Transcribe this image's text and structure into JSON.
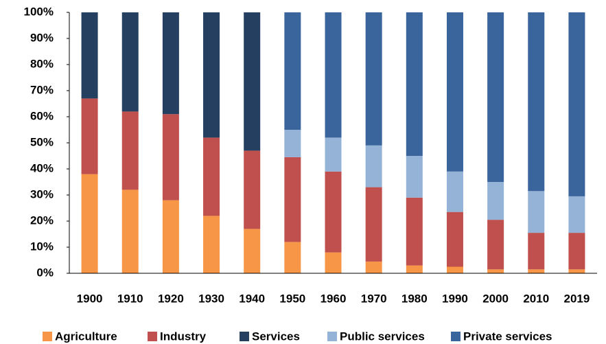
{
  "chart_data": {
    "type": "stacked-bar",
    "categories": [
      "1900",
      "1910",
      "1920",
      "1930",
      "1940",
      "1950",
      "1960",
      "1970",
      "1980",
      "1990",
      "2000",
      "2010",
      "2019"
    ],
    "series": [
      {
        "name": "Agriculture",
        "color": "#f79646",
        "values": [
          38,
          32,
          28,
          22,
          17,
          12,
          8,
          4.5,
          3,
          2.5,
          1.5,
          1.5,
          1.5
        ]
      },
      {
        "name": "Industry",
        "color": "#c0504d",
        "values": [
          29,
          30,
          33,
          30,
          30,
          32.5,
          31,
          28.5,
          26,
          21,
          19,
          14,
          14
        ]
      },
      {
        "name": "Services",
        "color": "#243f60",
        "values": [
          33,
          38,
          39,
          48,
          53,
          null,
          null,
          null,
          null,
          null,
          null,
          null,
          null
        ]
      },
      {
        "name": "Public services",
        "color": "#95b3d7",
        "values": [
          null,
          null,
          null,
          null,
          null,
          10.5,
          13,
          16,
          16,
          15.5,
          14.5,
          16,
          14
        ]
      },
      {
        "name": "Private services",
        "color": "#3a659c",
        "values": [
          null,
          null,
          null,
          null,
          null,
          45,
          48,
          51,
          55,
          61,
          65,
          68.5,
          70.5
        ]
      }
    ],
    "ylim": [
      0,
      100
    ],
    "yticks": [
      {
        "value": 0,
        "label": "0%"
      },
      {
        "value": 10,
        "label": "10%"
      },
      {
        "value": 20,
        "label": "20%"
      },
      {
        "value": 30,
        "label": "30%"
      },
      {
        "value": 40,
        "label": "40%"
      },
      {
        "value": 50,
        "label": "50%"
      },
      {
        "value": 60,
        "label": "60%"
      },
      {
        "value": 70,
        "label": "70%"
      },
      {
        "value": 80,
        "label": "80%"
      },
      {
        "value": 90,
        "label": "90%"
      },
      {
        "value": 100,
        "label": "100%"
      }
    ],
    "legend": "bottom"
  }
}
